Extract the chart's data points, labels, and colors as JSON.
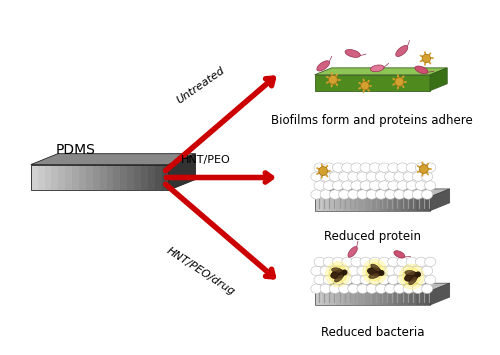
{
  "background_color": "#ffffff",
  "pdms_label": "PDMS",
  "arrow1_label": "Untreated",
  "arrow2_label": "HNT/PEO",
  "arrow3_label": "HNT/PEO/drug",
  "result1_label": "Biofilms form and proteins adhere",
  "result2_label": "Reduced protein",
  "result3_label": "Reduced bacteria",
  "arrow_color": "#cc0000",
  "label_fontsize": 8.5,
  "arrow_fontsize": 8.0
}
